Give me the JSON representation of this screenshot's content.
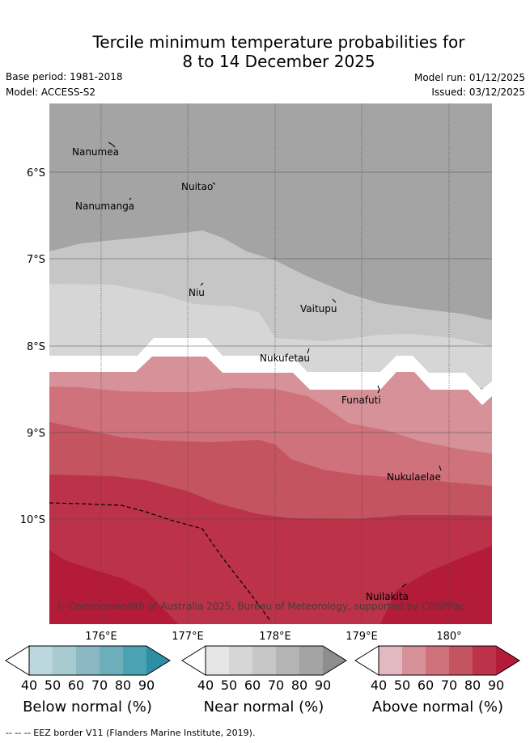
{
  "title_line1": "Tercile minimum temperature probabilities for",
  "title_line2": "8 to 14 December 2025",
  "base_period": "Base period: 1981-2018",
  "model": "Model: ACCESS-S2",
  "model_run": "Model run: 01/12/2025",
  "issued": "Issued: 03/12/2025",
  "map": {
    "lat_labels": [
      "6°S",
      "7°S",
      "8°S",
      "9°S",
      "10°S"
    ],
    "lon_labels": [
      "176°E",
      "177°E",
      "178°E",
      "179°E",
      "180°"
    ],
    "places": [
      "Nanumea",
      "Nuitao",
      "Nanumanga",
      "Niu",
      "Vaitupu",
      "Nukufetau",
      "Funafuti",
      "Nukulaelae",
      "Nuilakita"
    ],
    "copyright": "© Commonwealth of Australia 2025, Bureau of Meteorology, supported by COSPPac"
  },
  "colorbars": {
    "ticks": [
      "40",
      "50",
      "60",
      "70",
      "80",
      "90"
    ],
    "below": {
      "label": "Below normal (%)",
      "colors": [
        "#bcd8de",
        "#a8cbd1",
        "#8cb8c3",
        "#6eaebb",
        "#4aa3b3",
        "#2e8fa4"
      ]
    },
    "near": {
      "label": "Near normal (%)",
      "colors": [
        "#e6e6e6",
        "#d6d6d6",
        "#c6c6c6",
        "#b4b4b4",
        "#a4a4a4",
        "#8e8e8e"
      ]
    },
    "above": {
      "label": "Above normal (%)",
      "colors": [
        "#e2b9c0",
        "#d69199",
        "#cf727c",
        "#c4545f",
        "#bb3249",
        "#b31b39"
      ]
    }
  },
  "footer": "-- -- -- EEZ border V11 (Flanders Marine Institute, 2019)."
}
